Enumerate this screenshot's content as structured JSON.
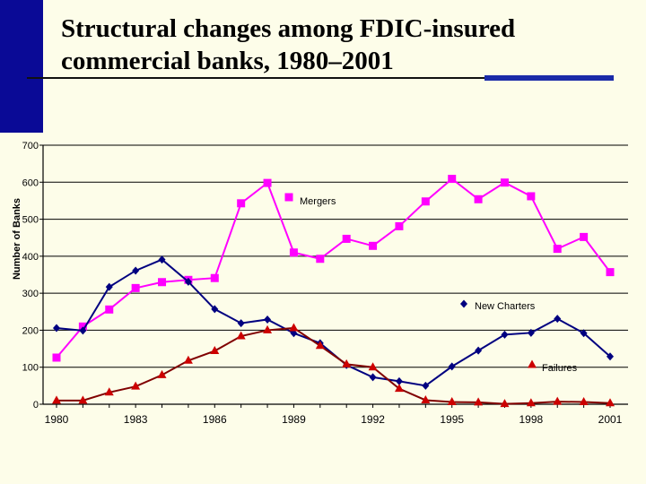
{
  "colors": {
    "background": "#fdfde9",
    "accent_bar": "#0a0a96",
    "accent_rule": "#1a2aa8",
    "mergers": "#ff00ff",
    "new_charters": "#000080",
    "failures": "#800000",
    "failures_marker": "#cc0000"
  },
  "chart_data": {
    "type": "line",
    "title": "Structural changes among FDIC-insured commercial banks, 1980–2001",
    "xlabel": "",
    "ylabel": "Number of Banks",
    "xlim": [
      1980,
      2001
    ],
    "ylim": [
      0,
      700
    ],
    "yticks": [
      0,
      100,
      200,
      300,
      400,
      500,
      600,
      700
    ],
    "xticks": [
      1980,
      1983,
      1986,
      1989,
      1992,
      1995,
      1998,
      2001
    ],
    "grid": true,
    "x": [
      1980,
      1981,
      1982,
      1983,
      1984,
      1985,
      1986,
      1987,
      1988,
      1989,
      1990,
      1991,
      1992,
      1993,
      1994,
      1995,
      1996,
      1997,
      1998,
      1999,
      2000,
      2001
    ],
    "series": [
      {
        "name": "Mergers",
        "color": "#ff00ff",
        "marker": "square",
        "values": [
          126,
          210,
          256,
          314,
          330,
          336,
          341,
          543,
          598,
          410,
          393,
          447,
          428,
          481,
          548,
          609,
          554,
          599,
          562,
          420,
          452,
          357
        ]
      },
      {
        "name": "New Charters",
        "color": "#000080",
        "marker": "diamond",
        "values": [
          206,
          199,
          317,
          361,
          391,
          331,
          257,
          219,
          229,
          192,
          165,
          106,
          73,
          62,
          50,
          102,
          145,
          188,
          193,
          231,
          192,
          129
        ]
      },
      {
        "name": "Failures",
        "color": "#800000",
        "marker": "triangle",
        "values": [
          10,
          10,
          32,
          48,
          79,
          118,
          144,
          184,
          200,
          206,
          158,
          108,
          100,
          42,
          11,
          6,
          5,
          1,
          3,
          7,
          6,
          3
        ]
      }
    ]
  }
}
